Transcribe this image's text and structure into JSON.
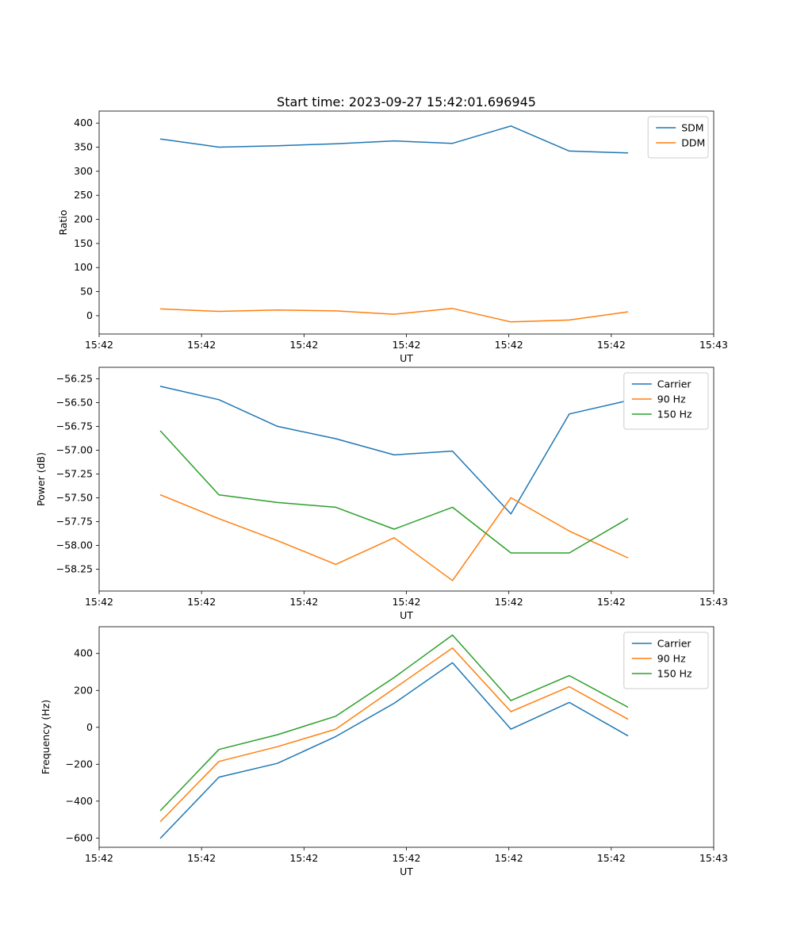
{
  "figure": {
    "title": "Start time: 2023-09-27 15:42:01.696945"
  },
  "chart_data": [
    {
      "type": "line",
      "name": "ratio",
      "xlabel": "UT",
      "ylabel": "Ratio",
      "xlim": [
        0,
        60
      ],
      "ylim": [
        -38,
        425
      ],
      "x_ticks": [
        0,
        10,
        20,
        30,
        40,
        50,
        60
      ],
      "x_tick_labels": [
        "15:42",
        "15:42",
        "15:42",
        "15:42",
        "15:42",
        "15:42",
        "15:43"
      ],
      "y_ticks": [
        0,
        50,
        100,
        150,
        200,
        250,
        300,
        350,
        400
      ],
      "y_tick_labels": [
        "0",
        "50",
        "100",
        "150",
        "200",
        "250",
        "300",
        "350",
        "400"
      ],
      "x": [
        6.0,
        11.7,
        17.4,
        23.1,
        28.8,
        34.5,
        40.2,
        45.9,
        51.6
      ],
      "series": [
        {
          "name": "SDM",
          "color": "#1f77b4",
          "values": [
            367,
            350,
            353,
            357,
            363,
            358,
            394,
            342,
            338
          ]
        },
        {
          "name": "DDM",
          "color": "#ff7f0e",
          "values": [
            14,
            9,
            12,
            10,
            3,
            15,
            -13,
            -9,
            8
          ]
        }
      ],
      "legend": {
        "position": "upper-right",
        "entries": [
          "SDM",
          "DDM"
        ]
      },
      "grid": false
    },
    {
      "type": "line",
      "name": "power",
      "xlabel": "UT",
      "ylabel": "Power (dB)",
      "xlim": [
        0,
        60
      ],
      "ylim": [
        -58.48,
        -56.13
      ],
      "x_ticks": [
        0,
        10,
        20,
        30,
        40,
        50,
        60
      ],
      "x_tick_labels": [
        "15:42",
        "15:42",
        "15:42",
        "15:42",
        "15:42",
        "15:42",
        "15:43"
      ],
      "y_ticks": [
        -58.25,
        -58.0,
        -57.75,
        -57.5,
        -57.25,
        -57.0,
        -56.75,
        -56.5,
        -56.25
      ],
      "y_tick_labels": [
        "−58.25",
        "−58.00",
        "−57.75",
        "−57.50",
        "−57.25",
        "−57.00",
        "−56.75",
        "−56.50",
        "−56.25"
      ],
      "x": [
        6.0,
        11.7,
        17.4,
        23.1,
        28.8,
        34.5,
        40.2,
        45.9,
        51.6
      ],
      "series": [
        {
          "name": "Carrier",
          "color": "#1f77b4",
          "values": [
            -56.33,
            -56.47,
            -56.75,
            -56.88,
            -57.05,
            -57.01,
            -57.67,
            -56.62,
            -56.48
          ]
        },
        {
          "name": "90 Hz",
          "color": "#ff7f0e",
          "values": [
            -57.47,
            -57.72,
            -57.95,
            -58.2,
            -57.92,
            -58.37,
            -57.5,
            -57.85,
            -58.13
          ]
        },
        {
          "name": "150 Hz",
          "color": "#2ca02c",
          "values": [
            -56.8,
            -57.47,
            -57.55,
            -57.6,
            -57.83,
            -57.6,
            -58.08,
            -58.08,
            -57.72
          ]
        }
      ],
      "legend": {
        "position": "upper-right",
        "entries": [
          "Carrier",
          "90 Hz",
          "150 Hz"
        ]
      },
      "grid": false
    },
    {
      "type": "line",
      "name": "frequency",
      "xlabel": "UT",
      "ylabel": "Frequency (Hz)",
      "xlim": [
        0,
        60
      ],
      "ylim": [
        -650,
        545
      ],
      "x_ticks": [
        0,
        10,
        20,
        30,
        40,
        50,
        60
      ],
      "x_tick_labels": [
        "15:42",
        "15:42",
        "15:42",
        "15:42",
        "15:42",
        "15:42",
        "15:43"
      ],
      "y_ticks": [
        -600,
        -400,
        -200,
        0,
        200,
        400
      ],
      "y_tick_labels": [
        "−600",
        "−400",
        "−200",
        "0",
        "200",
        "400"
      ],
      "x": [
        6.0,
        11.7,
        17.4,
        23.1,
        28.8,
        34.5,
        40.2,
        45.9,
        51.6
      ],
      "series": [
        {
          "name": "Carrier",
          "color": "#1f77b4",
          "values": [
            -600,
            -270,
            -195,
            -50,
            130,
            350,
            -10,
            135,
            -45
          ]
        },
        {
          "name": "90 Hz",
          "color": "#ff7f0e",
          "values": [
            -510,
            -185,
            -105,
            -10,
            210,
            430,
            85,
            220,
            45
          ]
        },
        {
          "name": "150 Hz",
          "color": "#2ca02c",
          "values": [
            -450,
            -120,
            -40,
            60,
            270,
            500,
            145,
            280,
            110
          ]
        }
      ],
      "legend": {
        "position": "upper-right",
        "entries": [
          "Carrier",
          "90 Hz",
          "150 Hz"
        ]
      },
      "grid": false
    }
  ]
}
